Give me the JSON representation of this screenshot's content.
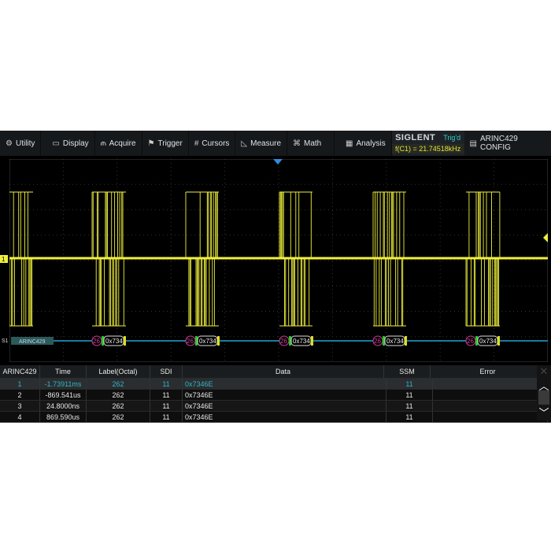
{
  "menu": [
    {
      "icon": "gear-icon",
      "label": "Utility"
    },
    {
      "icon": "monitor-icon",
      "label": "Display"
    },
    {
      "icon": "acquire-icon",
      "label": "Acquire"
    },
    {
      "icon": "flag-icon",
      "label": "Trigger"
    },
    {
      "icon": "cursors-icon",
      "label": "Cursors"
    },
    {
      "icon": "measure-icon",
      "label": "Measure"
    },
    {
      "icon": "math-icon",
      "label": "Math"
    },
    {
      "icon": "analysis-icon",
      "label": "Analysis"
    }
  ],
  "brand": {
    "logo": "SIGLENT",
    "status": "Trig'd",
    "frequency": "f(C1) = 21.74518kHz"
  },
  "config": {
    "icon": "config-icon",
    "label": "ARINC429 CONFIG"
  },
  "channel": {
    "c1": "1",
    "s1": "S1",
    "bus_label": "ARINC429",
    "frame_label": "262",
    "frame_data": "0x734"
  },
  "colors": {
    "c1": "#f0f03c",
    "bus": "#1fa6d6",
    "label": "#d03c98"
  },
  "table": {
    "headers": [
      "ARINC429",
      "Time",
      "Label(Octal)",
      "SDI",
      "Data",
      "SSM",
      "Error"
    ],
    "rows": [
      [
        "1",
        "-1.73911ms",
        "262",
        "11",
        "0x7346E",
        "11",
        ""
      ],
      [
        "2",
        "-869.541us",
        "262",
        "11",
        "0x7346E",
        "11",
        ""
      ],
      [
        "3",
        "24.8000ns",
        "262",
        "11",
        "0x7346E",
        "11",
        ""
      ],
      [
        "4",
        "869.590us",
        "262",
        "11",
        "0x7346E",
        "11",
        ""
      ]
    ],
    "selected_row": 1
  }
}
